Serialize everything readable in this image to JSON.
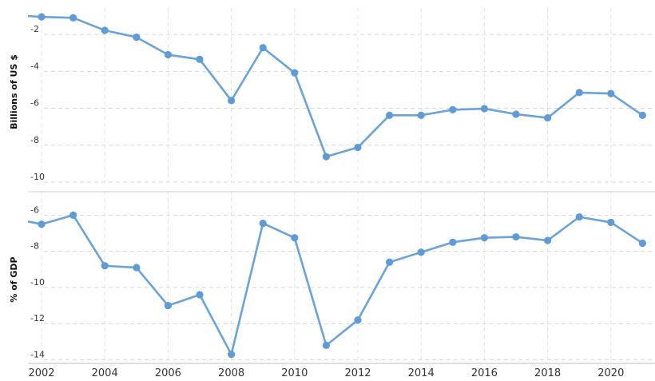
{
  "chart_data": [
    {
      "type": "line",
      "ylabel": "Billions of US $",
      "ylim": [
        -10,
        -1
      ],
      "yticks": [
        -2,
        -4,
        -6,
        -8,
        -10
      ],
      "x": [
        2002,
        2003,
        2004,
        2005,
        2006,
        2007,
        2008,
        2009,
        2010,
        2011,
        2012,
        2013,
        2014,
        2015,
        2016,
        2017,
        2018,
        2019,
        2020,
        2021
      ],
      "values": [
        -1.05,
        -1.1,
        -1.78,
        -2.15,
        -3.1,
        -3.35,
        -5.58,
        -2.72,
        -4.08,
        -8.62,
        -8.12,
        -6.38,
        -6.38,
        -6.08,
        -6.02,
        -6.32,
        -6.52,
        -5.15,
        -5.2,
        -6.38
      ],
      "line_start_value": -1.0,
      "color": "#5f9bd4",
      "grid": true
    },
    {
      "type": "line",
      "ylabel": "% of GDP",
      "ylim": [
        -14.2,
        -5.1
      ],
      "yticks": [
        -6,
        -8,
        -10,
        -12,
        -14
      ],
      "x": [
        2002,
        2003,
        2004,
        2005,
        2006,
        2007,
        2008,
        2009,
        2010,
        2011,
        2012,
        2013,
        2014,
        2015,
        2016,
        2017,
        2018,
        2019,
        2020,
        2021
      ],
      "values": [
        -6.5,
        -6.0,
        -8.8,
        -8.9,
        -11.0,
        -10.4,
        -13.7,
        -6.45,
        -7.25,
        -13.2,
        -11.8,
        -8.6,
        -8.05,
        -7.5,
        -7.25,
        -7.2,
        -7.4,
        -6.1,
        -6.4,
        -7.55
      ],
      "line_start_value": -6.35,
      "color": "#5f9bd4",
      "grid": true
    }
  ],
  "x_axis": {
    "tick_labels": [
      "2002",
      "2004",
      "2006",
      "2008",
      "2010",
      "2012",
      "2014",
      "2016",
      "2018",
      "2020"
    ]
  }
}
